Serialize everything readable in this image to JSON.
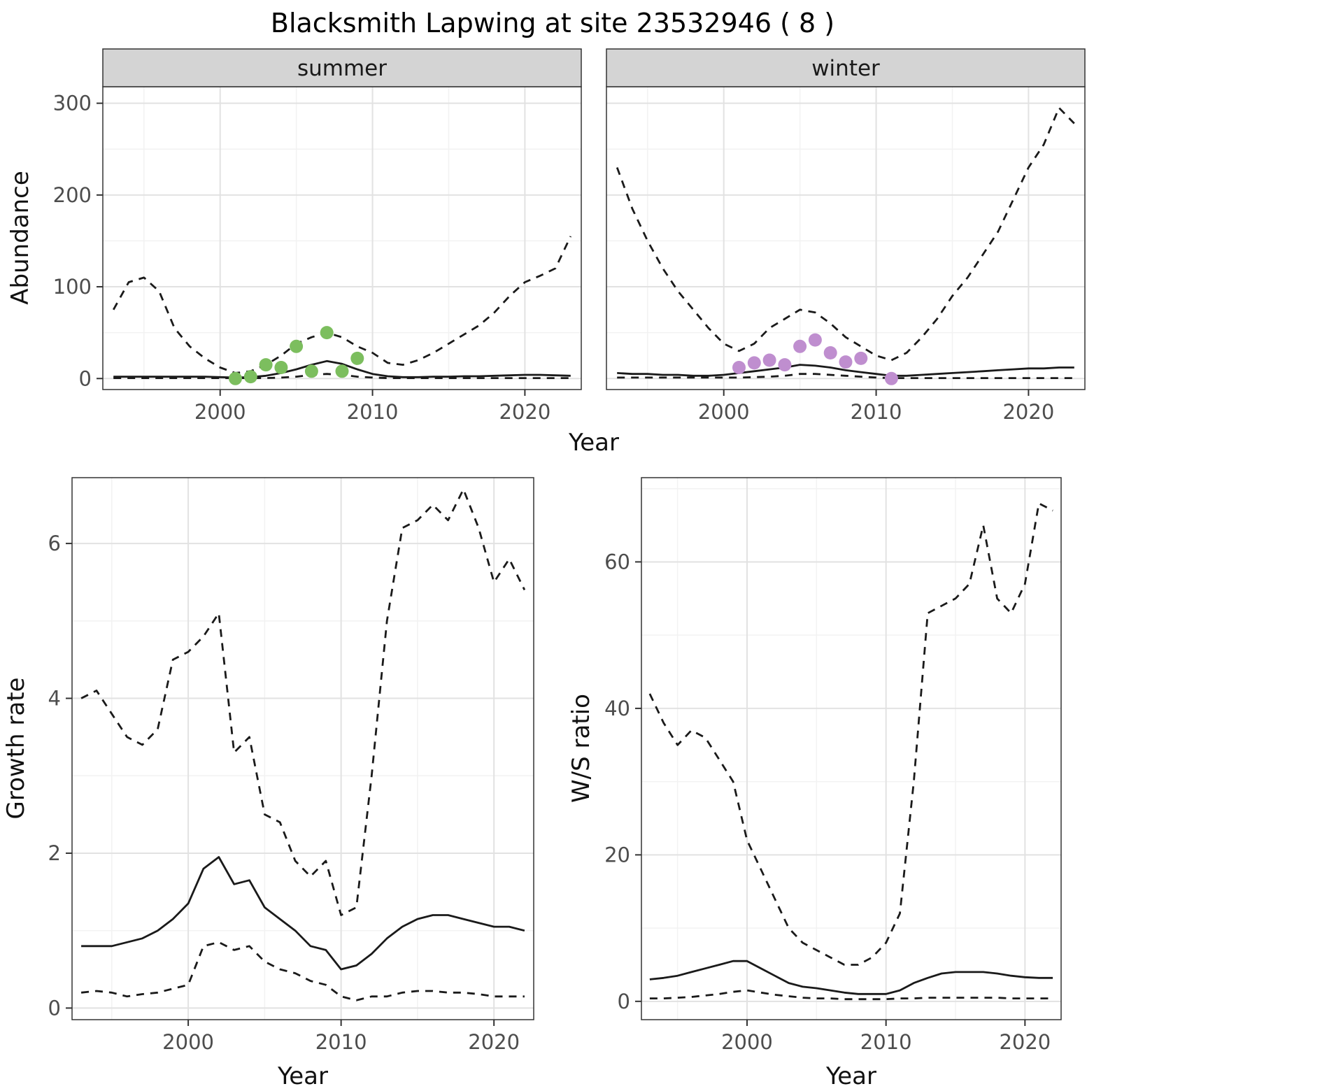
{
  "title": "Blacksmith Lapwing at site 23532946 ( 8 )",
  "colors": {
    "line": "#1a1a1a",
    "summer_points": "#7cbe5e",
    "winter_points": "#bf8ecf",
    "strip_bg": "#d4d4d4",
    "panel_bg": "#ffffff",
    "panel_border": "#333333",
    "grid_major": "#e2e2e2",
    "grid_minor": "#f2f2f2",
    "axis_text": "#4d4d4d",
    "tick_mark": "#333333"
  },
  "chart_data": [
    {
      "id": "abundance-summer",
      "type": "line",
      "facet": "summer",
      "ylabel": "Abundance",
      "xlabel": "Year",
      "xlim": [
        1992.3,
        2023.7
      ],
      "ylim": [
        -12,
        318
      ],
      "x_ticks": [
        2000,
        2010,
        2020
      ],
      "x_minor": [
        1995,
        2005,
        2015
      ],
      "y_ticks": [
        0,
        100,
        200,
        300
      ],
      "y_minor": [
        50,
        150,
        250
      ],
      "grid": true,
      "x": [
        1993,
        1994,
        1995,
        1996,
        1997,
        1998,
        1999,
        2000,
        2001,
        2002,
        2003,
        2004,
        2005,
        2006,
        2007,
        2008,
        2009,
        2010,
        2011,
        2012,
        2013,
        2014,
        2015,
        2016,
        2017,
        2018,
        2019,
        2020,
        2021,
        2022,
        2023
      ],
      "series": [
        {
          "name": "upper_ci",
          "style": "dashed",
          "values": [
            75,
            105,
            110,
            95,
            55,
            35,
            22,
            12,
            6,
            8,
            15,
            25,
            38,
            45,
            50,
            45,
            35,
            28,
            17,
            15,
            20,
            28,
            38,
            48,
            58,
            72,
            90,
            105,
            112,
            120,
            155
          ]
        },
        {
          "name": "median",
          "style": "solid",
          "values": [
            2,
            2,
            2,
            2,
            2,
            2,
            2,
            1.5,
            1,
            1.5,
            3,
            6,
            10,
            15,
            19,
            16,
            10,
            5,
            2.5,
            1.5,
            1.5,
            2,
            2,
            2.5,
            2.5,
            3,
            3.5,
            4,
            4,
            3.5,
            3
          ]
        },
        {
          "name": "lower_ci",
          "style": "dashed",
          "values": [
            0.5,
            0.5,
            0.5,
            0.5,
            0.5,
            0.5,
            0.5,
            0.5,
            0.5,
            0.5,
            0.5,
            1,
            2,
            4,
            5,
            4,
            2,
            1,
            0.5,
            0.5,
            0.5,
            0.5,
            0.5,
            0.5,
            0.5,
            0.5,
            0.5,
            0.5,
            0.5,
            0.5,
            0.5
          ]
        }
      ],
      "points": {
        "name": "observed-counts",
        "color_key": "summer_points",
        "x": [
          2001,
          2002,
          2003,
          2004,
          2005,
          2006,
          2007,
          2008,
          2009
        ],
        "y": [
          0,
          2,
          15,
          12,
          35,
          8,
          50,
          8,
          22
        ]
      }
    },
    {
      "id": "abundance-winter",
      "type": "line",
      "facet": "winter",
      "ylabel": "Abundance",
      "xlabel": "Year",
      "xlim": [
        1992.3,
        2023.7
      ],
      "ylim": [
        -12,
        318
      ],
      "x_ticks": [
        2000,
        2010,
        2020
      ],
      "x_minor": [
        1995,
        2005,
        2015
      ],
      "y_ticks": [
        0,
        100,
        200,
        300
      ],
      "y_minor": [
        50,
        150,
        250
      ],
      "grid": true,
      "x": [
        1993,
        1994,
        1995,
        1996,
        1997,
        1998,
        1999,
        2000,
        2001,
        2002,
        2003,
        2004,
        2005,
        2006,
        2007,
        2008,
        2009,
        2010,
        2011,
        2012,
        2013,
        2014,
        2015,
        2016,
        2017,
        2018,
        2019,
        2020,
        2021,
        2022,
        2023
      ],
      "series": [
        {
          "name": "upper_ci",
          "style": "dashed",
          "values": [
            230,
            185,
            150,
            120,
            95,
            75,
            55,
            38,
            30,
            38,
            55,
            65,
            75,
            72,
            60,
            45,
            35,
            25,
            20,
            28,
            45,
            65,
            90,
            110,
            135,
            160,
            195,
            230,
            255,
            295,
            278
          ]
        },
        {
          "name": "median",
          "style": "solid",
          "values": [
            6,
            5,
            5,
            4,
            4,
            3,
            3,
            4,
            6,
            8,
            10,
            12,
            15,
            14,
            12,
            9,
            7,
            5,
            3,
            3,
            4,
            5,
            6,
            7,
            8,
            9,
            10,
            11,
            11,
            12,
            12
          ]
        },
        {
          "name": "lower_ci",
          "style": "dashed",
          "values": [
            1,
            1,
            1,
            1,
            1,
            1,
            1,
            1,
            1,
            1.5,
            2,
            3,
            5,
            5,
            4,
            3,
            2,
            1,
            0.5,
            0.5,
            0.5,
            0.5,
            0.5,
            0.5,
            0.5,
            0.5,
            0.5,
            0.5,
            0.5,
            0.5,
            0.5
          ]
        }
      ],
      "points": {
        "name": "observed-counts",
        "color_key": "winter_points",
        "x": [
          2001,
          2002,
          2003,
          2004,
          2005,
          2006,
          2007,
          2008,
          2009,
          2011
        ],
        "y": [
          12,
          17,
          20,
          15,
          35,
          42,
          28,
          18,
          22,
          0
        ]
      }
    },
    {
      "id": "growth-rate",
      "type": "line",
      "facet": null,
      "ylabel": "Growth rate",
      "xlabel": "Year",
      "xlim": [
        1992.4,
        2022.6
      ],
      "ylim": [
        -0.15,
        6.85
      ],
      "x_ticks": [
        2000,
        2010,
        2020
      ],
      "x_minor": [
        1995,
        2005,
        2015
      ],
      "y_ticks": [
        0,
        2,
        4,
        6
      ],
      "y_minor": [
        1,
        3,
        5
      ],
      "grid": true,
      "x": [
        1993,
        1994,
        1995,
        1996,
        1997,
        1998,
        1999,
        2000,
        2001,
        2002,
        2003,
        2004,
        2005,
        2006,
        2007,
        2008,
        2009,
        2010,
        2011,
        2012,
        2013,
        2014,
        2015,
        2016,
        2017,
        2018,
        2019,
        2020,
        2021,
        2022
      ],
      "series": [
        {
          "name": "upper_ci",
          "style": "dashed",
          "values": [
            4.0,
            4.1,
            3.8,
            3.5,
            3.4,
            3.6,
            4.5,
            4.6,
            4.8,
            5.1,
            3.3,
            3.5,
            2.5,
            2.4,
            1.9,
            1.7,
            1.9,
            1.2,
            1.3,
            3.0,
            5.0,
            6.2,
            6.3,
            6.5,
            6.3,
            6.7,
            6.2,
            5.5,
            5.8,
            5.4
          ]
        },
        {
          "name": "median",
          "style": "solid",
          "values": [
            0.8,
            0.8,
            0.8,
            0.85,
            0.9,
            1.0,
            1.15,
            1.35,
            1.8,
            1.95,
            1.6,
            1.65,
            1.3,
            1.15,
            1.0,
            0.8,
            0.75,
            0.5,
            0.55,
            0.7,
            0.9,
            1.05,
            1.15,
            1.2,
            1.2,
            1.15,
            1.1,
            1.05,
            1.05,
            1.0
          ]
        },
        {
          "name": "lower_ci",
          "style": "dashed",
          "values": [
            0.2,
            0.22,
            0.2,
            0.15,
            0.18,
            0.2,
            0.25,
            0.3,
            0.8,
            0.85,
            0.75,
            0.8,
            0.6,
            0.5,
            0.45,
            0.35,
            0.3,
            0.15,
            0.1,
            0.15,
            0.15,
            0.2,
            0.22,
            0.22,
            0.2,
            0.2,
            0.18,
            0.15,
            0.15,
            0.15
          ]
        }
      ],
      "points": null
    },
    {
      "id": "ws-ratio",
      "type": "line",
      "facet": null,
      "ylabel": "W/S ratio",
      "xlabel": "Year",
      "xlim": [
        1992.4,
        2022.6
      ],
      "ylim": [
        -2.5,
        71.5
      ],
      "x_ticks": [
        2000,
        2010,
        2020
      ],
      "x_minor": [
        1995,
        2005,
        2015
      ],
      "y_ticks": [
        0,
        20,
        40,
        60
      ],
      "y_minor": [
        10,
        30,
        50,
        70
      ],
      "grid": true,
      "x": [
        1993,
        1994,
        1995,
        1996,
        1997,
        1998,
        1999,
        2000,
        2001,
        2002,
        2003,
        2004,
        2005,
        2006,
        2007,
        2008,
        2009,
        2010,
        2011,
        2012,
        2013,
        2014,
        2015,
        2016,
        2017,
        2018,
        2019,
        2020,
        2021,
        2022
      ],
      "series": [
        {
          "name": "upper_ci",
          "style": "dashed",
          "values": [
            42,
            38,
            35,
            37,
            36,
            33,
            30,
            22,
            18,
            14,
            10,
            8,
            7,
            6,
            5,
            5,
            6,
            8,
            12,
            30,
            53,
            54,
            55,
            57,
            65,
            55,
            53,
            57,
            68,
            67
          ]
        },
        {
          "name": "median",
          "style": "solid",
          "values": [
            3,
            3.2,
            3.5,
            4,
            4.5,
            5,
            5.5,
            5.5,
            4.5,
            3.5,
            2.5,
            2,
            1.8,
            1.5,
            1.2,
            1,
            1,
            1,
            1.5,
            2.5,
            3.2,
            3.8,
            4,
            4,
            4,
            3.8,
            3.5,
            3.3,
            3.2,
            3.2
          ]
        },
        {
          "name": "lower_ci",
          "style": "dashed",
          "values": [
            0.4,
            0.4,
            0.5,
            0.6,
            0.8,
            1.0,
            1.3,
            1.5,
            1.2,
            0.9,
            0.7,
            0.5,
            0.4,
            0.4,
            0.3,
            0.3,
            0.3,
            0.3,
            0.4,
            0.4,
            0.5,
            0.5,
            0.5,
            0.5,
            0.5,
            0.5,
            0.4,
            0.4,
            0.4,
            0.4
          ]
        }
      ],
      "points": null
    }
  ]
}
